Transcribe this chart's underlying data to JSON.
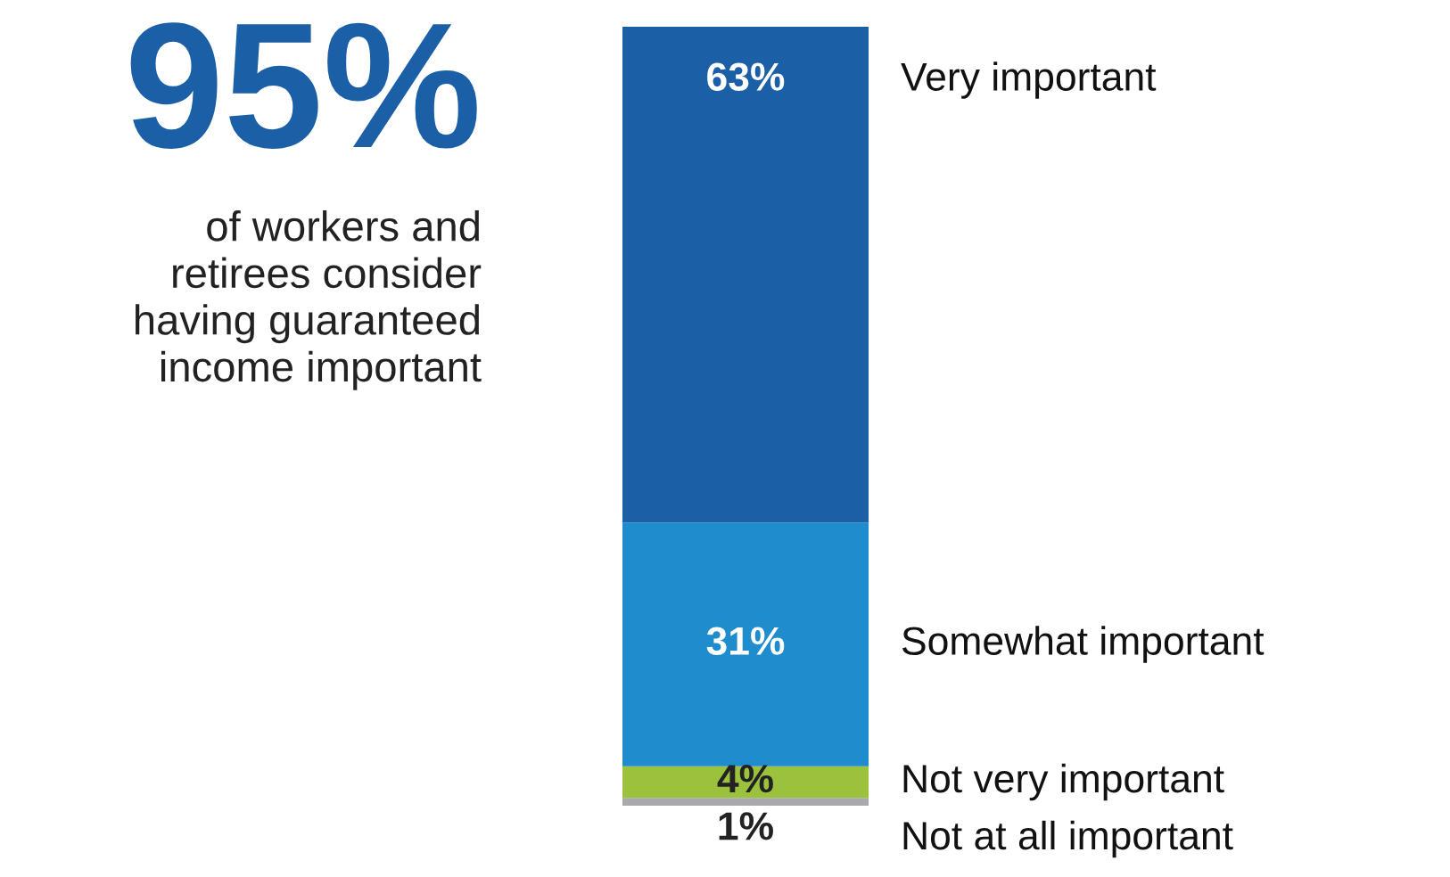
{
  "chart_data": {
    "type": "bar",
    "stacked": true,
    "title": "95%",
    "subtitle": "of workers and\nretirees consider\nhaving guaranteed\nincome important",
    "categories": [
      null
    ],
    "series": [
      {
        "name": "Not at all important",
        "color": "#a7a9ac",
        "values": [
          1
        ],
        "value_labels": [
          "1%"
        ]
      },
      {
        "name": "Not very important",
        "color": "#9cc13c",
        "values": [
          4
        ],
        "value_labels": [
          "4%"
        ]
      },
      {
        "name": "Somewhat important",
        "color": "#1f8dcd",
        "values": [
          31
        ],
        "value_labels": [
          "31%"
        ]
      },
      {
        "name": "Very important",
        "color": "#1b5fa6",
        "values": [
          63
        ],
        "value_labels": [
          "63%"
        ]
      }
    ],
    "legend": false
  }
}
